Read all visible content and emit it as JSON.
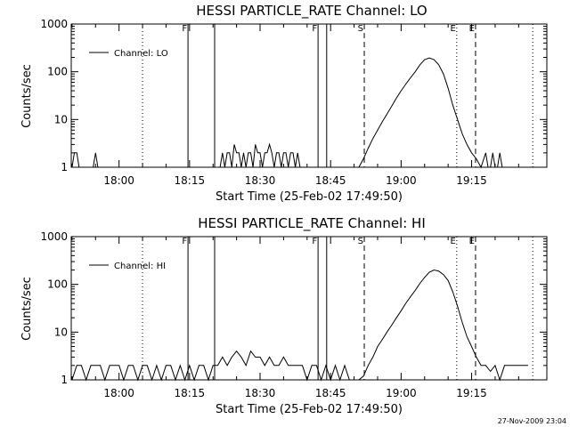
{
  "chart_data": [
    {
      "type": "line",
      "title": "HESSI PARTICLE_RATE Channel: LO",
      "xlabel": "Start Time (25-Feb-02 17:49:50)",
      "ylabel": "Counts/sec",
      "y_scale": "log",
      "ylim": [
        1,
        1000
      ],
      "xlim": [
        "17:49:50",
        "19:31:00"
      ],
      "y_ticks": [
        "1",
        "10",
        "100",
        "1000"
      ],
      "x_ticks": [
        "18:00",
        "18:15",
        "18:30",
        "18:45",
        "19:00",
        "19:15"
      ],
      "legend": {
        "entry": "Channel: LO",
        "placement": "top-left"
      },
      "grid": false,
      "markers": [
        {
          "label": "",
          "time": "18:05:00",
          "style": "dotted"
        },
        {
          "label": "F",
          "time": "18:14:40",
          "style": "solid"
        },
        {
          "label": "",
          "time": "18:20:20",
          "style": "solid"
        },
        {
          "label": "F",
          "time": "18:42:20",
          "style": "solid"
        },
        {
          "label": "",
          "time": "18:44:10",
          "style": "solid"
        },
        {
          "label": "S",
          "time": "18:52:10",
          "style": "dashed"
        },
        {
          "label": "E",
          "time": "19:11:50",
          "style": "dotted"
        },
        {
          "label": "E",
          "time": "19:15:50",
          "style": "dashed"
        },
        {
          "label": "",
          "time": "19:28:00",
          "style": "dotted"
        }
      ],
      "series": [
        {
          "name": "Channel: LO",
          "x": [
            "17:50:00",
            "17:50:30",
            "17:51:00",
            "17:51:30",
            "17:53:00",
            "17:54:30",
            "17:55:00",
            "17:55:30",
            "18:21:00",
            "18:21:30",
            "18:22:00",
            "18:22:30",
            "18:23:00",
            "18:23:30",
            "18:24:00",
            "18:24:30",
            "18:25:00",
            "18:25:30",
            "18:26:00",
            "18:26:30",
            "18:27:00",
            "18:27:30",
            "18:28:00",
            "18:28:30",
            "18:29:00",
            "18:29:30",
            "18:30:00",
            "18:30:30",
            "18:31:00",
            "18:31:30",
            "18:32:00",
            "18:32:30",
            "18:33:00",
            "18:33:30",
            "18:34:00",
            "18:34:30",
            "18:35:00",
            "18:35:30",
            "18:36:00",
            "18:36:30",
            "18:37:00",
            "18:37:30",
            "18:38:00",
            "18:38:30",
            "18:39:00",
            "18:51:00",
            "18:52:00",
            "18:53:00",
            "18:54:00",
            "18:55:00",
            "18:56:00",
            "18:57:00",
            "18:58:00",
            "18:59:00",
            "19:00:00",
            "19:01:00",
            "19:02:00",
            "19:03:00",
            "19:04:00",
            "19:05:00",
            "19:06:00",
            "19:07:00",
            "19:08:00",
            "19:09:00",
            "19:10:00",
            "19:11:00",
            "19:12:00",
            "19:13:00",
            "19:14:00",
            "19:15:00",
            "19:16:00",
            "19:17:00",
            "19:18:00",
            "19:18:30",
            "19:19:00",
            "19:19:30",
            "19:20:00",
            "19:20:30",
            "19:21:00",
            "19:21:30",
            "19:22:00"
          ],
          "y": [
            1,
            2,
            2,
            1,
            1,
            1,
            2,
            1,
            1,
            1,
            2,
            1,
            2,
            2,
            1,
            3,
            2,
            2,
            1,
            2,
            1,
            2,
            2,
            1,
            3,
            2,
            2,
            1,
            2,
            2,
            3,
            2,
            1,
            2,
            2,
            1,
            2,
            2,
            1,
            2,
            2,
            1,
            2,
            1,
            1,
            1,
            1.5,
            2.5,
            4,
            6,
            9,
            13,
            19,
            28,
            40,
            55,
            75,
            100,
            140,
            180,
            195,
            180,
            140,
            90,
            45,
            20,
            10,
            5,
            3,
            2,
            1.5,
            1,
            2,
            1,
            1,
            2,
            1,
            1,
            2,
            1,
            1
          ]
        }
      ]
    },
    {
      "type": "line",
      "title": "HESSI PARTICLE_RATE Channel: HI",
      "xlabel": "Start Time (25-Feb-02 17:49:50)",
      "ylabel": "Counts/sec",
      "y_scale": "log",
      "ylim": [
        1,
        1000
      ],
      "xlim": [
        "17:49:50",
        "19:31:00"
      ],
      "y_ticks": [
        "1",
        "10",
        "100",
        "1000"
      ],
      "x_ticks": [
        "18:00",
        "18:15",
        "18:30",
        "18:45",
        "19:00",
        "19:15"
      ],
      "legend": {
        "entry": "Channel: HI",
        "placement": "top-left"
      },
      "grid": false,
      "markers": [
        {
          "label": "",
          "time": "18:05:00",
          "style": "dotted"
        },
        {
          "label": "F",
          "time": "18:14:40",
          "style": "solid"
        },
        {
          "label": "",
          "time": "18:20:20",
          "style": "solid"
        },
        {
          "label": "F",
          "time": "18:42:20",
          "style": "solid"
        },
        {
          "label": "",
          "time": "18:44:10",
          "style": "solid"
        },
        {
          "label": "S",
          "time": "18:52:10",
          "style": "dashed"
        },
        {
          "label": "E",
          "time": "19:11:50",
          "style": "dotted"
        },
        {
          "label": "E",
          "time": "19:15:50",
          "style": "dashed"
        },
        {
          "label": "",
          "time": "19:28:00",
          "style": "dotted"
        }
      ],
      "series": [
        {
          "name": "Channel: HI",
          "x": [
            "17:50:00",
            "17:51:00",
            "17:52:00",
            "17:53:00",
            "17:54:00",
            "17:55:00",
            "17:56:00",
            "17:57:00",
            "17:58:00",
            "17:59:00",
            "18:00:00",
            "18:01:00",
            "18:02:00",
            "18:03:00",
            "18:04:00",
            "18:05:00",
            "18:06:00",
            "18:07:00",
            "18:08:00",
            "18:09:00",
            "18:10:00",
            "18:11:00",
            "18:12:00",
            "18:13:00",
            "18:14:00",
            "18:15:00",
            "18:16:00",
            "18:17:00",
            "18:18:00",
            "18:19:00",
            "18:20:00",
            "18:21:00",
            "18:22:00",
            "18:23:00",
            "18:24:00",
            "18:25:00",
            "18:26:00",
            "18:27:00",
            "18:28:00",
            "18:29:00",
            "18:30:00",
            "18:31:00",
            "18:32:00",
            "18:33:00",
            "18:34:00",
            "18:35:00",
            "18:36:00",
            "18:37:00",
            "18:38:00",
            "18:39:00",
            "18:40:00",
            "18:41:00",
            "18:42:00",
            "18:43:00",
            "18:44:00",
            "18:45:00",
            "18:46:00",
            "18:47:00",
            "18:48:00",
            "18:49:00",
            "18:50:00",
            "18:51:00",
            "18:52:00",
            "18:53:00",
            "18:54:00",
            "18:55:00",
            "18:56:00",
            "18:57:00",
            "18:58:00",
            "18:59:00",
            "19:00:00",
            "19:01:00",
            "19:02:00",
            "19:03:00",
            "19:04:00",
            "19:05:00",
            "19:06:00",
            "19:07:00",
            "19:08:00",
            "19:09:00",
            "19:10:00",
            "19:11:00",
            "19:12:00",
            "19:13:00",
            "19:14:00",
            "19:15:00",
            "19:16:00",
            "19:17:00",
            "19:18:00",
            "19:19:00",
            "19:20:00",
            "19:21:00",
            "19:22:00",
            "19:23:00",
            "19:24:00",
            "19:25:00",
            "19:26:00",
            "19:27:00"
          ],
          "y": [
            1,
            2,
            2,
            1,
            2,
            2,
            2,
            1,
            2,
            2,
            2,
            1,
            2,
            2,
            1,
            2,
            2,
            1,
            2,
            1,
            2,
            2,
            1,
            2,
            1,
            2,
            1,
            2,
            2,
            1,
            2,
            2,
            3,
            2,
            3,
            4,
            3,
            2,
            4,
            3,
            3,
            2,
            3,
            2,
            2,
            3,
            2,
            2,
            2,
            2,
            1,
            2,
            2,
            1,
            2,
            1,
            2,
            1,
            2,
            1,
            1,
            1,
            1.2,
            2,
            3,
            5,
            7,
            10,
            14,
            20,
            28,
            40,
            55,
            75,
            105,
            140,
            180,
            200,
            190,
            160,
            120,
            70,
            35,
            16,
            8,
            5,
            3,
            2,
            2,
            1.5,
            2,
            1,
            2,
            2,
            2,
            2,
            2,
            2
          ]
        }
      ]
    }
  ],
  "stamp": "27-Nov-2009 23:04"
}
